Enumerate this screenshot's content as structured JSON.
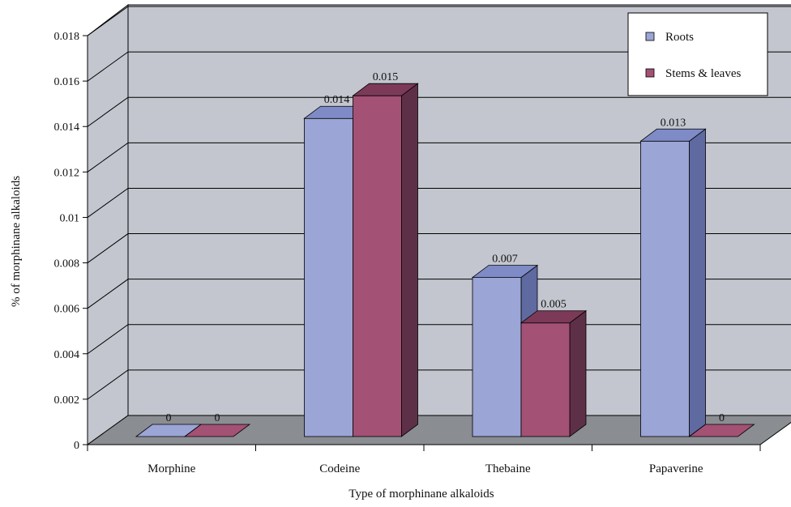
{
  "chart_data": {
    "type": "bar",
    "style": "3d-clustered",
    "title": "",
    "xlabel": "Type of morphinane alkaloids",
    "ylabel": "% of morphinane alkaloids",
    "ylim": [
      0,
      0.018
    ],
    "yticks": [
      "0",
      "0.002",
      "0.004",
      "0.006",
      "0.008",
      "0.01",
      "0.012",
      "0.014",
      "0.016",
      "0.018"
    ],
    "grid": true,
    "legend_position": "top-right",
    "categories": [
      "Morphine",
      "Codeine",
      "Thebaine",
      "Papaverine"
    ],
    "series": [
      {
        "name": "Roots",
        "values": [
          0,
          0.014,
          0.007,
          0.013
        ],
        "labels": [
          "0",
          "0.014",
          "0.007",
          "0.013"
        ],
        "color": "#9BA5D6",
        "side_color": "#5E6AA0",
        "top_color": "#7F8BC6"
      },
      {
        "name": "Stems & leaves",
        "values": [
          0,
          0.015,
          0.005,
          0
        ],
        "labels": [
          "0",
          "0.015",
          "0.005",
          "0"
        ],
        "color": "#A35175",
        "side_color": "#5E3048",
        "top_color": "#7C3A58"
      }
    ],
    "colors": {
      "wall": "#C3C6CE",
      "floor": "#8A8D92",
      "grid": "#000000"
    }
  }
}
